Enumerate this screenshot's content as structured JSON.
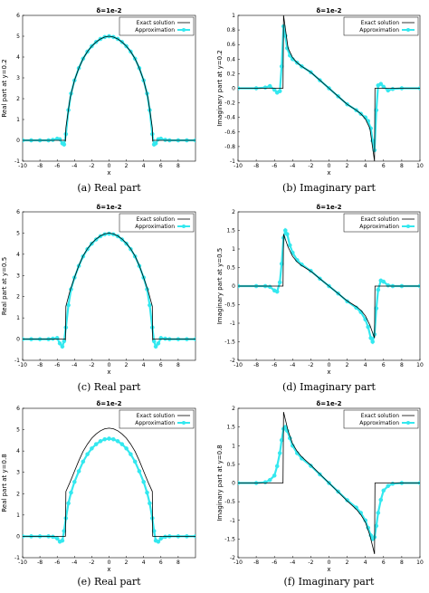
{
  "figure": {
    "legend_labels": [
      "Exact solution",
      "Approximation"
    ],
    "colors": {
      "exact": "#000000",
      "approx": "#33e8ef",
      "axes": "#000000",
      "background": "#ffffff"
    }
  },
  "chart_data": [
    {
      "id": "a",
      "type": "line",
      "title": "δ=1e-2",
      "caption": "(a) Real part",
      "xlabel": "x",
      "ylabel": "Real part at y=0.2",
      "xlim": [
        -10,
        10
      ],
      "ylim": [
        -1,
        6
      ],
      "xticks": [
        -10,
        -8,
        -6,
        -4,
        -2,
        0,
        2,
        4,
        6,
        8
      ],
      "yticks": [
        -1,
        0,
        1,
        2,
        3,
        4,
        5,
        6
      ],
      "legend_position": "top-right",
      "series": [
        {
          "name": "Exact solution",
          "x": [
            -10,
            -5.05,
            -5.05,
            -5,
            -4.5,
            -4,
            -3.5,
            -3,
            -2.5,
            -2,
            -1.5,
            -1,
            -0.5,
            0,
            0.5,
            1,
            1.5,
            2,
            2.5,
            3,
            3.5,
            4,
            4.5,
            5,
            5.05,
            5.05,
            10
          ],
          "y": [
            0,
            0,
            -0.05,
            0.6,
            2.05,
            2.88,
            3.47,
            3.92,
            4.26,
            4.52,
            4.72,
            4.87,
            4.96,
            5.0,
            4.96,
            4.87,
            4.72,
            4.52,
            4.26,
            3.92,
            3.47,
            2.88,
            2.05,
            0.6,
            -0.05,
            0,
            0
          ]
        },
        {
          "name": "Approximation",
          "x": [
            -10,
            -9,
            -8,
            -7,
            -6.5,
            -6,
            -5.7,
            -5.4,
            -5.2,
            -5,
            -4.7,
            -4.4,
            -4,
            -3.5,
            -3,
            -2.5,
            -2,
            -1.5,
            -1,
            -0.5,
            0,
            0.5,
            1,
            1.5,
            2,
            2.5,
            3,
            3.5,
            4,
            4.4,
            4.7,
            5,
            5.2,
            5.4,
            5.7,
            6,
            6.5,
            7,
            8,
            9,
            10
          ],
          "y": [
            0,
            0,
            0,
            0,
            0.02,
            0.08,
            0.05,
            -0.15,
            -0.2,
            0.3,
            1.45,
            2.25,
            2.88,
            3.47,
            3.92,
            4.26,
            4.52,
            4.72,
            4.87,
            4.96,
            5.0,
            4.96,
            4.87,
            4.72,
            4.52,
            4.26,
            3.92,
            3.47,
            2.88,
            2.25,
            1.45,
            0.3,
            -0.2,
            -0.15,
            0.05,
            0.08,
            0.02,
            0,
            0,
            0,
            0
          ]
        }
      ]
    },
    {
      "id": "b",
      "type": "line",
      "title": "δ=1e-2",
      "caption": "(b) Imaginary part",
      "xlabel": "x",
      "ylabel": "Imaginary part at y=0.2",
      "xlim": [
        -10,
        10
      ],
      "ylim": [
        -1,
        1
      ],
      "xticks": [
        -10,
        -8,
        -6,
        -4,
        -2,
        0,
        2,
        4,
        6,
        8,
        10
      ],
      "yticks": [
        -1,
        -0.8,
        -0.6,
        -0.4,
        -0.2,
        0,
        0.2,
        0.4,
        0.6,
        0.8,
        1
      ],
      "legend_position": "top-right",
      "series": [
        {
          "name": "Exact solution",
          "x": [
            -10,
            -5.05,
            -5.05,
            -5,
            -4.5,
            -4,
            -3.5,
            -3,
            -2,
            -1,
            0,
            1,
            2,
            3,
            3.5,
            4,
            4.5,
            5,
            5.05,
            5.05,
            10
          ],
          "y": [
            0,
            0,
            0,
            1.0,
            0.55,
            0.42,
            0.35,
            0.3,
            0.22,
            0.11,
            0,
            -0.11,
            -0.22,
            -0.3,
            -0.35,
            -0.42,
            -0.55,
            -1.0,
            0,
            0,
            0
          ]
        },
        {
          "name": "Approximation",
          "x": [
            -10,
            -8,
            -7,
            -6.5,
            -6,
            -5.7,
            -5.4,
            -5.2,
            -5,
            -4.8,
            -4.6,
            -4.3,
            -4,
            -3.5,
            -3,
            -2,
            -1,
            0,
            1,
            2,
            3,
            3.5,
            4,
            4.3,
            4.6,
            4.8,
            5,
            5.2,
            5.4,
            5.7,
            6,
            6.5,
            7,
            8,
            10
          ],
          "y": [
            0,
            0,
            0.01,
            0.03,
            -0.02,
            -0.06,
            -0.04,
            0.3,
            0.85,
            0.72,
            0.55,
            0.45,
            0.4,
            0.35,
            0.3,
            0.22,
            0.11,
            0,
            -0.11,
            -0.22,
            -0.3,
            -0.35,
            -0.4,
            -0.45,
            -0.55,
            -0.72,
            -0.85,
            -0.3,
            0.04,
            0.06,
            0.02,
            -0.03,
            -0.01,
            0,
            0
          ]
        }
      ]
    },
    {
      "id": "c",
      "type": "line",
      "title": "δ=1e-2",
      "caption": "(c) Real part",
      "xlabel": "x",
      "ylabel": "Real part at y=0.5",
      "xlim": [
        -10,
        10
      ],
      "ylim": [
        -1,
        6
      ],
      "xticks": [
        -10,
        -8,
        -6,
        -4,
        -2,
        0,
        2,
        4,
        6,
        8
      ],
      "yticks": [
        -1,
        0,
        1,
        2,
        3,
        4,
        5,
        6
      ],
      "legend_position": "top-right",
      "series": [
        {
          "name": "Exact solution",
          "x": [
            -10,
            -5.05,
            -5.05,
            -5,
            -4.5,
            -4,
            -3.5,
            -3,
            -2.5,
            -2,
            -1.5,
            -1,
            -0.5,
            0,
            0.5,
            1,
            1.5,
            2,
            2.5,
            3,
            3.5,
            4,
            4.5,
            5,
            5.05,
            5.05,
            10
          ],
          "y": [
            0,
            0,
            -0.05,
            1.55,
            2.3,
            2.9,
            3.47,
            3.92,
            4.26,
            4.52,
            4.72,
            4.87,
            4.96,
            5.0,
            4.96,
            4.87,
            4.72,
            4.52,
            4.26,
            3.92,
            3.47,
            2.9,
            2.3,
            1.55,
            -0.05,
            0,
            0
          ]
        },
        {
          "name": "Approximation",
          "x": [
            -10,
            -9,
            -8,
            -7,
            -6.5,
            -6,
            -5.7,
            -5.4,
            -5.2,
            -5,
            -4.7,
            -4.4,
            -4,
            -3.5,
            -3,
            -2.5,
            -2,
            -1.5,
            -1,
            -0.5,
            0,
            0.5,
            1,
            1.5,
            2,
            2.5,
            3,
            3.5,
            4,
            4.4,
            4.7,
            5,
            5.2,
            5.4,
            5.7,
            6,
            6.5,
            7,
            8,
            9,
            10
          ],
          "y": [
            0,
            0,
            0,
            0,
            0.02,
            0.05,
            -0.2,
            -0.35,
            -0.1,
            0.55,
            1.6,
            2.35,
            2.9,
            3.45,
            3.9,
            4.24,
            4.5,
            4.7,
            4.85,
            4.94,
            4.97,
            4.94,
            4.85,
            4.7,
            4.5,
            4.24,
            3.9,
            3.45,
            2.9,
            2.35,
            1.6,
            0.55,
            -0.1,
            -0.35,
            -0.2,
            0.05,
            0.02,
            0,
            0,
            0,
            0
          ]
        }
      ]
    },
    {
      "id": "d",
      "type": "line",
      "title": "δ=1e-2",
      "caption": "(d) Imaginary part",
      "xlabel": "x",
      "ylabel": "Imaginary part at y=0.5",
      "xlim": [
        -10,
        10
      ],
      "ylim": [
        -2,
        2
      ],
      "xticks": [
        -10,
        -8,
        -6,
        -4,
        -2,
        0,
        2,
        4,
        6,
        8,
        10
      ],
      "yticks": [
        -2,
        -1.5,
        -1,
        -0.5,
        0,
        0.5,
        1,
        1.5,
        2
      ],
      "legend_position": "top-right",
      "series": [
        {
          "name": "Exact solution",
          "x": [
            -10,
            -5.05,
            -5.05,
            -5,
            -4.5,
            -4,
            -3.5,
            -3,
            -2,
            -1,
            0,
            1,
            2,
            3,
            3.5,
            4,
            4.5,
            5,
            5.05,
            5.05,
            10
          ],
          "y": [
            0,
            0,
            0,
            1.4,
            1.05,
            0.8,
            0.65,
            0.55,
            0.4,
            0.2,
            0,
            -0.2,
            -0.4,
            -0.55,
            -0.65,
            -0.8,
            -1.05,
            -1.4,
            0,
            0,
            0
          ]
        },
        {
          "name": "Approximation",
          "x": [
            -10,
            -8,
            -7,
            -6.5,
            -6,
            -5.7,
            -5.4,
            -5.2,
            -5,
            -4.8,
            -4.6,
            -4.3,
            -4,
            -3.5,
            -3,
            -2,
            -1,
            0,
            1,
            2,
            3,
            3.5,
            4,
            4.3,
            4.6,
            4.8,
            5,
            5.2,
            5.4,
            5.7,
            6,
            6.5,
            7,
            8,
            10
          ],
          "y": [
            0,
            0,
            0,
            -0.02,
            -0.12,
            -0.15,
            0.1,
            0.6,
            1.3,
            1.5,
            1.4,
            1.1,
            0.9,
            0.7,
            0.58,
            0.41,
            0.2,
            0,
            -0.2,
            -0.41,
            -0.58,
            -0.7,
            -0.9,
            -1.1,
            -1.4,
            -1.5,
            -1.3,
            -0.6,
            -0.1,
            0.15,
            0.12,
            0.02,
            0,
            0,
            0
          ]
        }
      ]
    },
    {
      "id": "e",
      "type": "line",
      "title": "δ=1e-2",
      "caption": "(e) Real part",
      "xlabel": "x",
      "ylabel": "Real part at y=0.8",
      "xlim": [
        -10,
        10
      ],
      "ylim": [
        -1,
        6
      ],
      "xticks": [
        -10,
        -8,
        -6,
        -4,
        -2,
        0,
        2,
        4,
        6,
        8
      ],
      "yticks": [
        -1,
        0,
        1,
        2,
        3,
        4,
        5,
        6
      ],
      "legend_position": "top-right",
      "series": [
        {
          "name": "Exact solution",
          "x": [
            -10,
            -5.05,
            -5.05,
            -5,
            -4.5,
            -4,
            -3.5,
            -3,
            -2.5,
            -2,
            -1.5,
            -1,
            -0.5,
            0,
            0.5,
            1,
            1.5,
            2,
            2.5,
            3,
            3.5,
            4,
            4.5,
            5,
            5.05,
            5.05,
            10
          ],
          "y": [
            0,
            0,
            0,
            2.1,
            2.55,
            3.05,
            3.55,
            3.98,
            4.32,
            4.6,
            4.8,
            4.95,
            5.04,
            5.07,
            5.04,
            4.95,
            4.8,
            4.6,
            4.32,
            3.98,
            3.55,
            3.05,
            2.55,
            2.1,
            0,
            0,
            0
          ]
        },
        {
          "name": "Approximation",
          "x": [
            -10,
            -9,
            -8,
            -7,
            -6.5,
            -6,
            -5.7,
            -5.4,
            -5.2,
            -5,
            -4.7,
            -4.4,
            -4,
            -3.5,
            -3,
            -2.5,
            -2,
            -1.5,
            -1,
            -0.5,
            0,
            0.5,
            1,
            1.5,
            2,
            2.5,
            3,
            3.5,
            4,
            4.4,
            4.7,
            5,
            5.2,
            5.4,
            5.7,
            6,
            6.5,
            7,
            8,
            9,
            10
          ],
          "y": [
            0,
            0,
            0,
            0,
            -0.02,
            -0.1,
            -0.25,
            -0.2,
            0.25,
            0.85,
            1.55,
            2.05,
            2.55,
            3.05,
            3.5,
            3.85,
            4.12,
            4.32,
            4.46,
            4.55,
            4.58,
            4.55,
            4.46,
            4.32,
            4.12,
            3.85,
            3.5,
            3.05,
            2.55,
            2.05,
            1.55,
            0.85,
            0.25,
            -0.2,
            -0.25,
            -0.1,
            -0.02,
            0,
            0,
            0,
            0
          ]
        }
      ]
    },
    {
      "id": "f",
      "type": "line",
      "title": "δ=1e-2",
      "caption": "(f) Imaginary part",
      "xlabel": "x",
      "ylabel": "Imaginary part at y=0.8",
      "xlim": [
        -10,
        10
      ],
      "ylim": [
        -2,
        2
      ],
      "xticks": [
        -10,
        -8,
        -6,
        -4,
        -2,
        0,
        2,
        4,
        6,
        8,
        10
      ],
      "yticks": [
        -2,
        -1.5,
        -1,
        -0.5,
        0,
        0.5,
        1,
        1.5,
        2
      ],
      "legend_position": "top-right",
      "series": [
        {
          "name": "Exact solution",
          "x": [
            -10,
            -5.05,
            -5.05,
            -5,
            -4.5,
            -4,
            -3.5,
            -3,
            -2,
            -1,
            0,
            1,
            2,
            3,
            3.5,
            4,
            4.5,
            5,
            5.05,
            5.05,
            10
          ],
          "y": [
            0,
            0,
            0,
            1.9,
            1.4,
            1.05,
            0.85,
            0.7,
            0.48,
            0.24,
            0,
            -0.24,
            -0.48,
            -0.7,
            -0.85,
            -1.05,
            -1.4,
            -1.9,
            0,
            0,
            0
          ]
        },
        {
          "name": "Approximation",
          "x": [
            -10,
            -8,
            -7,
            -6.5,
            -6,
            -5.7,
            -5.4,
            -5.2,
            -5,
            -4.8,
            -4.6,
            -4.3,
            -4,
            -3.5,
            -3,
            -2,
            -1,
            0,
            1,
            2,
            3,
            3.5,
            4,
            4.3,
            4.6,
            4.8,
            5,
            5.2,
            5.4,
            5.7,
            6,
            6.5,
            7,
            8,
            10
          ],
          "y": [
            0,
            0,
            0.02,
            0.08,
            0.2,
            0.45,
            0.8,
            1.15,
            1.45,
            1.5,
            1.4,
            1.2,
            1.0,
            0.8,
            0.66,
            0.46,
            0.23,
            0,
            -0.23,
            -0.46,
            -0.66,
            -0.8,
            -1.0,
            -1.2,
            -1.4,
            -1.5,
            -1.45,
            -1.15,
            -0.8,
            -0.45,
            -0.2,
            -0.08,
            -0.02,
            0,
            0
          ]
        }
      ]
    }
  ]
}
